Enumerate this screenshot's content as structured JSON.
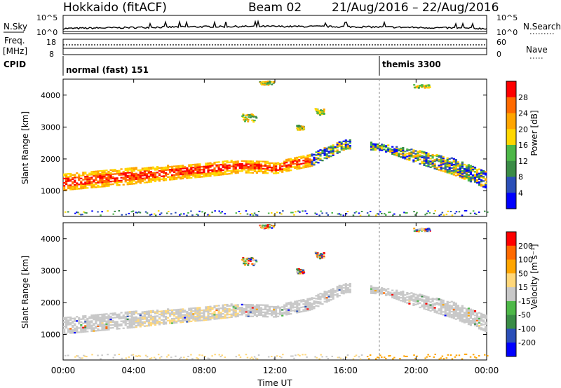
{
  "header": {
    "station": "Hokkaido (fitACF)",
    "beam": "Beam 02",
    "date_range": "21/Aug/2016 – 22/Aug/2016"
  },
  "top_panels": {
    "nsky": {
      "label": "N.Sky",
      "ticks": [
        "10^5",
        "10^0"
      ]
    },
    "nsearch": {
      "label": "N.Search",
      "ticks": [
        "10^5",
        "10^0"
      ]
    },
    "freq": {
      "label_line1": "Freq.",
      "label_line2": "[MHz]",
      "ticks": [
        "18",
        "8"
      ]
    },
    "nave": {
      "label": "Nave",
      "ticks": [
        "60",
        "0"
      ]
    },
    "cpid": {
      "label": "CPID",
      "segments": [
        "normal (fast) 151",
        "themis 3300"
      ]
    }
  },
  "colors": {
    "power_scale": [
      "#0000ff",
      "#2b4fb8",
      "#3a8c46",
      "#4db848",
      "#ffd700",
      "#ffa500",
      "#ff6a00",
      "#ff0000"
    ],
    "velocity_scale": [
      "#ff0000",
      "#ff6a00",
      "#ffa500",
      "#ffd77a",
      "#c8c8c8",
      "#4db848",
      "#3a8c46",
      "#2b4fb8",
      "#0000ff"
    ]
  },
  "chart_data": [
    {
      "type": "heatmap",
      "panel": "power",
      "xlabel": "",
      "ylabel": "Slant Range [km]",
      "yticks": [
        "1000",
        "2000",
        "3000",
        "4000"
      ],
      "ylim": [
        200,
        4500
      ],
      "colorbar_label": "Power [dB]",
      "colorbar_ticks": [
        "4",
        "8",
        "12",
        "16",
        "20",
        "24",
        "28"
      ],
      "echo_band": {
        "hours": [
          0,
          2,
          4,
          6,
          8,
          10,
          12,
          14,
          16,
          18,
          20,
          22,
          24
        ],
        "center_km": [
          1300,
          1400,
          1500,
          1600,
          1700,
          1800,
          1750,
          2000,
          2500,
          2400,
          2100,
          1800,
          1350
        ],
        "width_km": [
          500,
          500,
          500,
          450,
          450,
          400,
          350,
          400,
          300,
          200,
          400,
          500,
          500
        ]
      }
    },
    {
      "type": "heatmap",
      "panel": "velocity",
      "xlabel": "Time UT",
      "ylabel": "Slant Range [km]",
      "xticks": [
        "00:00",
        "04:00",
        "08:00",
        "12:00",
        "16:00",
        "20:00",
        "00:00"
      ],
      "yticks": [
        "1000",
        "2000",
        "3000",
        "4000"
      ],
      "ylim": [
        200,
        4500
      ],
      "colorbar_label": "Velocity [m s⁻¹]",
      "colorbar_ticks": [
        "200",
        "100",
        "50",
        "15",
        "-15",
        "-50",
        "-100",
        "-200"
      ]
    }
  ]
}
